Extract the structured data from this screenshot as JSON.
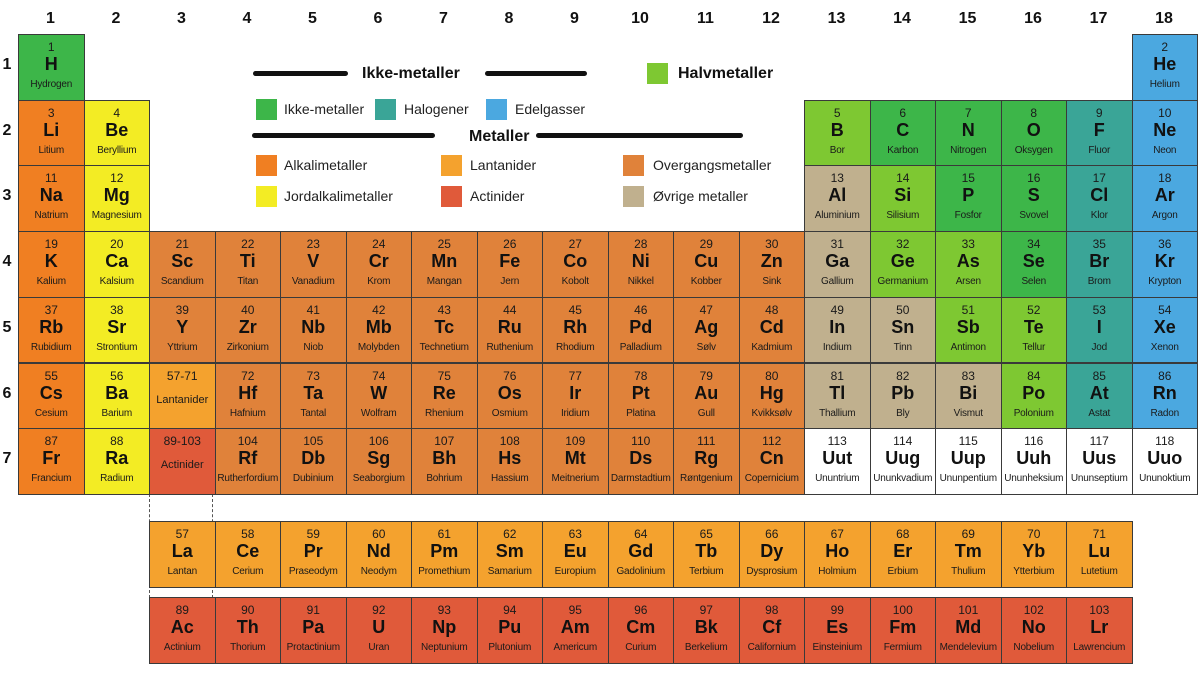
{
  "groups": [
    "1",
    "2",
    "3",
    "4",
    "5",
    "6",
    "7",
    "8",
    "9",
    "10",
    "11",
    "12",
    "13",
    "14",
    "15",
    "16",
    "17",
    "18"
  ],
  "periods": [
    "1",
    "2",
    "3",
    "4",
    "5",
    "6",
    "7"
  ],
  "colors": {
    "n": "#3db649",
    "h": "#3aa597",
    "g": "#4ba8e0",
    "m": "#7ec832",
    "a": "#f07f22",
    "e": "#f3ec24",
    "t": "#e0823a",
    "l": "#f4a22e",
    "c": "#e05a3a",
    "o": "#c0b08e",
    "u": "#ffffff"
  },
  "legend": {
    "nonmetals_heading": "Ikke-metaller",
    "metalloids": "Halvmetaller",
    "metals_heading": "Metaller",
    "items": [
      {
        "cat": "n",
        "label": "Ikke-metaller"
      },
      {
        "cat": "h",
        "label": "Halogener"
      },
      {
        "cat": "g",
        "label": "Edelgasser"
      },
      {
        "cat": "a",
        "label": "Alkalimetaller"
      },
      {
        "cat": "l",
        "label": "Lantanider"
      },
      {
        "cat": "t",
        "label": "Overgangsmetaller"
      },
      {
        "cat": "e",
        "label": "Jordalkalimetaller"
      },
      {
        "cat": "c",
        "label": "Actinider"
      },
      {
        "cat": "o",
        "label": "Øvrige metaller"
      }
    ]
  },
  "placeholders": [
    {
      "range": "57-71",
      "label": "Lantanider",
      "cat": "l",
      "group": 3,
      "period": 6
    },
    {
      "range": "89-103",
      "label": "Actinider",
      "cat": "c",
      "group": 3,
      "period": 7
    }
  ],
  "elements": [
    [
      1,
      "H",
      "Hydrogen",
      "n",
      1,
      1
    ],
    [
      2,
      "He",
      "Helium",
      "g",
      18,
      1
    ],
    [
      3,
      "Li",
      "Litium",
      "a",
      1,
      2
    ],
    [
      4,
      "Be",
      "Beryllium",
      "e",
      2,
      2
    ],
    [
      5,
      "B",
      "Bor",
      "m",
      13,
      2
    ],
    [
      6,
      "C",
      "Karbon",
      "n",
      14,
      2
    ],
    [
      7,
      "N",
      "Nitrogen",
      "n",
      15,
      2
    ],
    [
      8,
      "O",
      "Oksygen",
      "n",
      16,
      2
    ],
    [
      9,
      "F",
      "Fluor",
      "h",
      17,
      2
    ],
    [
      10,
      "Ne",
      "Neon",
      "g",
      18,
      2
    ],
    [
      11,
      "Na",
      "Natrium",
      "a",
      1,
      3
    ],
    [
      12,
      "Mg",
      "Magnesium",
      "e",
      2,
      3
    ],
    [
      13,
      "Al",
      "Aluminium",
      "o",
      13,
      3
    ],
    [
      14,
      "Si",
      "Silisium",
      "m",
      14,
      3
    ],
    [
      15,
      "P",
      "Fosfor",
      "n",
      15,
      3
    ],
    [
      16,
      "S",
      "Svovel",
      "n",
      16,
      3
    ],
    [
      17,
      "Cl",
      "Klor",
      "h",
      17,
      3
    ],
    [
      18,
      "Ar",
      "Argon",
      "g",
      18,
      3
    ],
    [
      19,
      "K",
      "Kalium",
      "a",
      1,
      4
    ],
    [
      20,
      "Ca",
      "Kalsium",
      "e",
      2,
      4
    ],
    [
      21,
      "Sc",
      "Scandium",
      "t",
      3,
      4
    ],
    [
      22,
      "Ti",
      "Titan",
      "t",
      4,
      4
    ],
    [
      23,
      "V",
      "Vanadium",
      "t",
      5,
      4
    ],
    [
      24,
      "Cr",
      "Krom",
      "t",
      6,
      4
    ],
    [
      25,
      "Mn",
      "Mangan",
      "t",
      7,
      4
    ],
    [
      26,
      "Fe",
      "Jern",
      "t",
      8,
      4
    ],
    [
      27,
      "Co",
      "Kobolt",
      "t",
      9,
      4
    ],
    [
      28,
      "Ni",
      "Nikkel",
      "t",
      10,
      4
    ],
    [
      29,
      "Cu",
      "Kobber",
      "t",
      11,
      4
    ],
    [
      30,
      "Zn",
      "Sink",
      "t",
      12,
      4
    ],
    [
      31,
      "Ga",
      "Gallium",
      "o",
      13,
      4
    ],
    [
      32,
      "Ge",
      "Germanium",
      "m",
      14,
      4
    ],
    [
      33,
      "As",
      "Arsen",
      "m",
      15,
      4
    ],
    [
      34,
      "Se",
      "Selen",
      "n",
      16,
      4
    ],
    [
      35,
      "Br",
      "Brom",
      "h",
      17,
      4
    ],
    [
      36,
      "Kr",
      "Krypton",
      "g",
      18,
      4
    ],
    [
      37,
      "Rb",
      "Rubidium",
      "a",
      1,
      5
    ],
    [
      38,
      "Sr",
      "Strontium",
      "e",
      2,
      5
    ],
    [
      39,
      "Y",
      "Yttrium",
      "t",
      3,
      5
    ],
    [
      40,
      "Zr",
      "Zirkonium",
      "t",
      4,
      5
    ],
    [
      41,
      "Nb",
      "Niob",
      "t",
      5,
      5
    ],
    [
      42,
      "Mb",
      "Molybden",
      "t",
      6,
      5
    ],
    [
      43,
      "Tc",
      "Technetium",
      "t",
      7,
      5
    ],
    [
      44,
      "Ru",
      "Ruthenium",
      "t",
      8,
      5
    ],
    [
      45,
      "Rh",
      "Rhodium",
      "t",
      9,
      5
    ],
    [
      46,
      "Pd",
      "Palladium",
      "t",
      10,
      5
    ],
    [
      47,
      "Ag",
      "Sølv",
      "t",
      11,
      5
    ],
    [
      48,
      "Cd",
      "Kadmium",
      "t",
      12,
      5
    ],
    [
      49,
      "In",
      "Indium",
      "o",
      13,
      5
    ],
    [
      50,
      "Sn",
      "Tinn",
      "o",
      14,
      5
    ],
    [
      51,
      "Sb",
      "Antimon",
      "m",
      15,
      5
    ],
    [
      52,
      "Te",
      "Tellur",
      "m",
      16,
      5
    ],
    [
      53,
      "I",
      "Jod",
      "h",
      17,
      5
    ],
    [
      54,
      "Xe",
      "Xenon",
      "g",
      18,
      5
    ],
    [
      55,
      "Cs",
      "Cesium",
      "a",
      1,
      6
    ],
    [
      56,
      "Ba",
      "Barium",
      "e",
      2,
      6
    ],
    [
      72,
      "Hf",
      "Hafnium",
      "t",
      4,
      6
    ],
    [
      73,
      "Ta",
      "Tantal",
      "t",
      5,
      6
    ],
    [
      74,
      "W",
      "Wolfram",
      "t",
      6,
      6
    ],
    [
      75,
      "Re",
      "Rhenium",
      "t",
      7,
      6
    ],
    [
      76,
      "Os",
      "Osmium",
      "t",
      8,
      6
    ],
    [
      77,
      "Ir",
      "Iridium",
      "t",
      9,
      6
    ],
    [
      78,
      "Pt",
      "Platina",
      "t",
      10,
      6
    ],
    [
      79,
      "Au",
      "Gull",
      "t",
      11,
      6
    ],
    [
      80,
      "Hg",
      "Kvikksølv",
      "t",
      12,
      6
    ],
    [
      81,
      "Tl",
      "Thallium",
      "o",
      13,
      6
    ],
    [
      82,
      "Pb",
      "Bly",
      "o",
      14,
      6
    ],
    [
      83,
      "Bi",
      "Vismut",
      "o",
      15,
      6
    ],
    [
      84,
      "Po",
      "Polonium",
      "m",
      16,
      6
    ],
    [
      85,
      "At",
      "Astat",
      "h",
      17,
      6
    ],
    [
      86,
      "Rn",
      "Radon",
      "g",
      18,
      6
    ],
    [
      87,
      "Fr",
      "Francium",
      "a",
      1,
      7
    ],
    [
      88,
      "Ra",
      "Radium",
      "e",
      2,
      7
    ],
    [
      104,
      "Rf",
      "Rutherfordium",
      "t",
      4,
      7
    ],
    [
      105,
      "Db",
      "Dubinium",
      "t",
      5,
      7
    ],
    [
      106,
      "Sg",
      "Seaborgium",
      "t",
      6,
      7
    ],
    [
      107,
      "Bh",
      "Bohrium",
      "t",
      7,
      7
    ],
    [
      108,
      "Hs",
      "Hassium",
      "t",
      8,
      7
    ],
    [
      109,
      "Mt",
      "Meitnerium",
      "t",
      9,
      7
    ],
    [
      110,
      "Ds",
      "Darmstadtium",
      "t",
      10,
      7
    ],
    [
      111,
      "Rg",
      "Røntgenium",
      "t",
      11,
      7
    ],
    [
      112,
      "Cn",
      "Copernicium",
      "t",
      12,
      7
    ],
    [
      113,
      "Uut",
      "Ununtrium",
      "u",
      13,
      7
    ],
    [
      114,
      "Uug",
      "Ununkvadium",
      "u",
      14,
      7
    ],
    [
      115,
      "Uup",
      "Ununpentium",
      "u",
      15,
      7
    ],
    [
      116,
      "Uuh",
      "Ununheksium",
      "u",
      16,
      7
    ],
    [
      117,
      "Uus",
      "Ununseptium",
      "u",
      17,
      7
    ],
    [
      118,
      "Uuo",
      "Ununoktium",
      "u",
      18,
      7
    ]
  ],
  "lanthanides": [
    [
      57,
      "La",
      "Lantan"
    ],
    [
      58,
      "Ce",
      "Cerium"
    ],
    [
      59,
      "Pr",
      "Praseodym"
    ],
    [
      60,
      "Nd",
      "Neodym"
    ],
    [
      61,
      "Pm",
      "Promethium"
    ],
    [
      62,
      "Sm",
      "Samarium"
    ],
    [
      63,
      "Eu",
      "Europium"
    ],
    [
      64,
      "Gd",
      "Gadolinium"
    ],
    [
      65,
      "Tb",
      "Terbium"
    ],
    [
      66,
      "Dy",
      "Dysprosium"
    ],
    [
      67,
      "Ho",
      "Holmium"
    ],
    [
      68,
      "Er",
      "Erbium"
    ],
    [
      69,
      "Tm",
      "Thulium"
    ],
    [
      70,
      "Yb",
      "Ytterbium"
    ],
    [
      71,
      "Lu",
      "Lutetium"
    ]
  ],
  "actinides": [
    [
      89,
      "Ac",
      "Actinium"
    ],
    [
      90,
      "Th",
      "Thorium"
    ],
    [
      91,
      "Pa",
      "Protactinium"
    ],
    [
      92,
      "U",
      "Uran"
    ],
    [
      93,
      "Np",
      "Neptunium"
    ],
    [
      94,
      "Pu",
      "Plutonium"
    ],
    [
      95,
      "Am",
      "Americum"
    ],
    [
      96,
      "Cm",
      "Curium"
    ],
    [
      97,
      "Bk",
      "Berkelium"
    ],
    [
      98,
      "Cf",
      "Californium"
    ],
    [
      99,
      "Es",
      "Einsteinium"
    ],
    [
      100,
      "Fm",
      "Fermium"
    ],
    [
      101,
      "Md",
      "Mendelevium"
    ],
    [
      102,
      "No",
      "Nobelium"
    ],
    [
      103,
      "Lr",
      "Lawrencium"
    ]
  ]
}
